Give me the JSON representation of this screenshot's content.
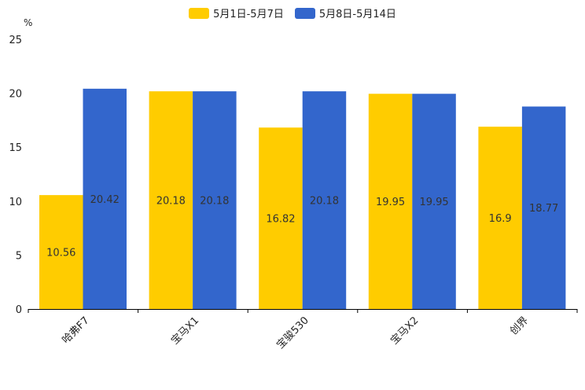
{
  "chart_data": {
    "type": "bar",
    "categories": [
      "哈弗F7",
      "宝马X1",
      "宝骏530",
      "宝马X2",
      "创界"
    ],
    "series": [
      {
        "name": "5月1日-5月7日",
        "color": "#FFCC00",
        "values": [
          10.56,
          20.18,
          16.82,
          19.95,
          16.9
        ],
        "labels": [
          "10.56",
          "20.18",
          "16.82",
          "19.95",
          "16.9"
        ]
      },
      {
        "name": "5月8日-5月14日",
        "color": "#3366CC",
        "values": [
          20.42,
          20.18,
          20.18,
          19.95,
          18.77
        ],
        "labels": [
          "20.42",
          "20.18",
          "20.18",
          "19.95",
          "18.77"
        ]
      }
    ],
    "ylabel": "%",
    "ylim": [
      0,
      25
    ],
    "yticks": [
      "0",
      "5",
      "10",
      "15",
      "20",
      "25"
    ],
    "legend_position": "top-center"
  }
}
